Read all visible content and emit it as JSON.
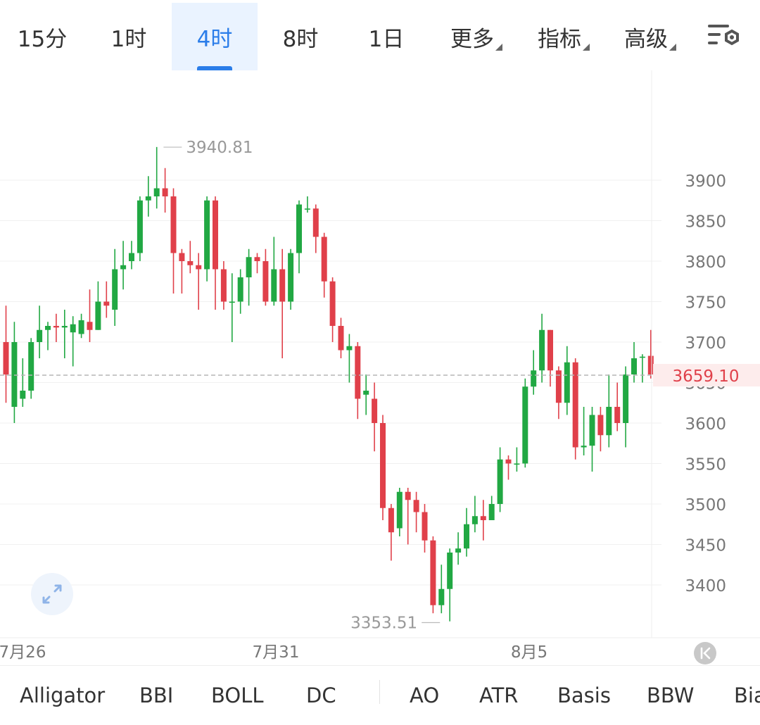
{
  "tabs": [
    {
      "label": "15分",
      "active": false
    },
    {
      "label": "1时",
      "active": false
    },
    {
      "label": "4时",
      "active": true
    },
    {
      "label": "8时",
      "active": false
    },
    {
      "label": "1日",
      "active": false
    }
  ],
  "menus": [
    {
      "label": "更多"
    },
    {
      "label": "指标"
    },
    {
      "label": "高级"
    }
  ],
  "settings_icon": "chart-settings-icon",
  "chart_data": {
    "type": "candlestick",
    "y_ticks": [
      "3900",
      "3850",
      "3800",
      "3750",
      "3700",
      "3650",
      "3600",
      "3550",
      "3500",
      "3450",
      "3400"
    ],
    "x_ticks": [
      "7月26",
      "7月31",
      "8月5"
    ],
    "current_price": "3659.10",
    "max_label": "3940.81",
    "min_label": "3353.51",
    "ylim": [
      3340,
      3990
    ],
    "colors": {
      "up": "#21a843",
      "down": "#e0404a",
      "price_line": "#b5b5b5",
      "price_tag_bg": "#fdecec",
      "price_tag_text": "#e0404a"
    },
    "grid": true,
    "candles": [
      [
        3700,
        3660,
        3745,
        3625
      ],
      [
        3620,
        3700,
        3725,
        3600
      ],
      [
        3630,
        3640,
        3680,
        3620
      ],
      [
        3640,
        3700,
        3705,
        3630
      ],
      [
        3700,
        3715,
        3745,
        3680
      ],
      [
        3715,
        3720,
        3725,
        3690
      ],
      [
        3720,
        3718,
        3735,
        3700
      ],
      [
        3718,
        3720,
        3740,
        3680
      ],
      [
        3712,
        3722,
        3732,
        3670
      ],
      [
        3710,
        3727,
        3735,
        3705
      ],
      [
        3725,
        3715,
        3765,
        3700
      ],
      [
        3715,
        3750,
        3775,
        3715
      ],
      [
        3750,
        3745,
        3775,
        3730
      ],
      [
        3740,
        3790,
        3815,
        3720
      ],
      [
        3790,
        3795,
        3825,
        3765
      ],
      [
        3800,
        3810,
        3825,
        3790
      ],
      [
        3810,
        3875,
        3880,
        3800
      ],
      [
        3875,
        3880,
        3905,
        3855
      ],
      [
        3880,
        3890,
        3941,
        3865
      ],
      [
        3890,
        3880,
        3915,
        3860
      ],
      [
        3880,
        3810,
        3890,
        3760
      ],
      [
        3810,
        3800,
        3815,
        3760
      ],
      [
        3800,
        3795,
        3825,
        3785
      ],
      [
        3795,
        3790,
        3810,
        3740
      ],
      [
        3790,
        3875,
        3880,
        3775
      ],
      [
        3875,
        3790,
        3880,
        3740
      ],
      [
        3790,
        3750,
        3800,
        3740
      ],
      [
        3750,
        3750,
        3785,
        3700
      ],
      [
        3750,
        3780,
        3790,
        3735
      ],
      [
        3780,
        3805,
        3815,
        3745
      ],
      [
        3805,
        3800,
        3810,
        3785
      ],
      [
        3800,
        3750,
        3815,
        3745
      ],
      [
        3750,
        3790,
        3830,
        3745
      ],
      [
        3790,
        3750,
        3815,
        3680
      ],
      [
        3750,
        3810,
        3815,
        3740
      ],
      [
        3810,
        3870,
        3875,
        3785
      ],
      [
        3865,
        3865,
        3880,
        3860
      ],
      [
        3865,
        3830,
        3870,
        3810
      ],
      [
        3830,
        3775,
        3835,
        3755
      ],
      [
        3775,
        3720,
        3780,
        3700
      ],
      [
        3720,
        3690,
        3730,
        3680
      ],
      [
        3690,
        3695,
        3710,
        3650
      ],
      [
        3695,
        3630,
        3700,
        3605
      ],
      [
        3635,
        3640,
        3660,
        3610
      ],
      [
        3630,
        3600,
        3650,
        3565
      ],
      [
        3600,
        3495,
        3610,
        3480
      ],
      [
        3495,
        3465,
        3500,
        3430
      ],
      [
        3470,
        3515,
        3520,
        3460
      ],
      [
        3515,
        3505,
        3520,
        3450
      ],
      [
        3505,
        3490,
        3515,
        3465
      ],
      [
        3490,
        3455,
        3500,
        3440
      ],
      [
        3455,
        3375,
        3460,
        3365
      ],
      [
        3375,
        3395,
        3425,
        3365
      ],
      [
        3395,
        3440,
        3445,
        3355
      ],
      [
        3440,
        3445,
        3465,
        3425
      ],
      [
        3445,
        3475,
        3495,
        3435
      ],
      [
        3475,
        3485,
        3510,
        3465
      ],
      [
        3485,
        3480,
        3505,
        3455
      ],
      [
        3480,
        3500,
        3510,
        3485
      ],
      [
        3500,
        3555,
        3570,
        3490
      ],
      [
        3555,
        3550,
        3560,
        3530
      ],
      [
        3550,
        3550,
        3570,
        3540
      ],
      [
        3550,
        3645,
        3655,
        3545
      ],
      [
        3645,
        3665,
        3690,
        3635
      ],
      [
        3665,
        3715,
        3735,
        3650
      ],
      [
        3715,
        3665,
        3715,
        3645
      ],
      [
        3665,
        3625,
        3670,
        3605
      ],
      [
        3625,
        3675,
        3695,
        3610
      ],
      [
        3675,
        3570,
        3680,
        3555
      ],
      [
        3570,
        3572,
        3620,
        3560
      ],
      [
        3572,
        3610,
        3620,
        3540
      ],
      [
        3610,
        3585,
        3620,
        3565
      ],
      [
        3585,
        3620,
        3660,
        3570
      ],
      [
        3620,
        3600,
        3650,
        3590
      ],
      [
        3600,
        3660,
        3670,
        3570
      ],
      [
        3660,
        3680,
        3700,
        3650
      ],
      [
        3682,
        3682,
        3685,
        3650
      ],
      [
        3683,
        3660,
        3715,
        3655
      ]
    ]
  },
  "expand_icon": "expand-arrows-icon",
  "scroll_right_icon": "scroll-to-latest-icon",
  "indicators": [
    {
      "label": "Alligator"
    },
    {
      "label": "BBI"
    },
    {
      "label": "BOLL"
    },
    {
      "label": "DC"
    },
    {
      "label": "AO"
    },
    {
      "label": "ATR"
    },
    {
      "label": "Basis"
    },
    {
      "label": "BBW"
    },
    {
      "label": "Bia"
    }
  ]
}
